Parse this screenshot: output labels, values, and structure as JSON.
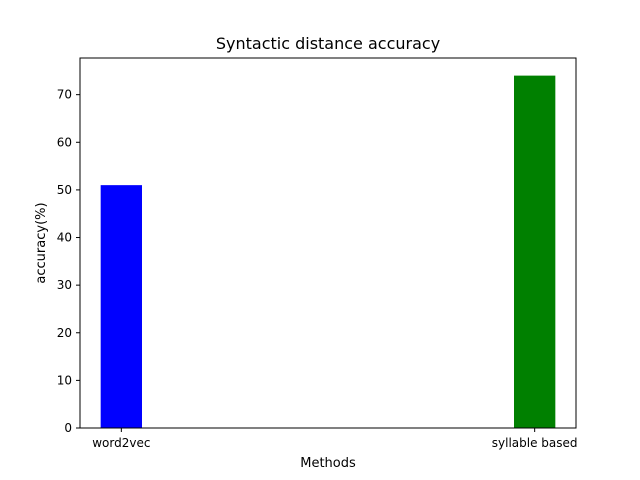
{
  "chart_data": {
    "type": "bar",
    "title": "Syntactic distance accuracy",
    "xlabel": "Methods",
    "ylabel": "accuracy(%)",
    "categories": [
      "word2vec",
      "syllable based"
    ],
    "values": [
      51,
      74
    ],
    "colors": [
      "#0000ff",
      "#008000"
    ],
    "ylim": [
      0,
      77.7
    ],
    "yticks": [
      0,
      10,
      20,
      30,
      40,
      50,
      60,
      70
    ],
    "grid": false,
    "legend": "none"
  }
}
